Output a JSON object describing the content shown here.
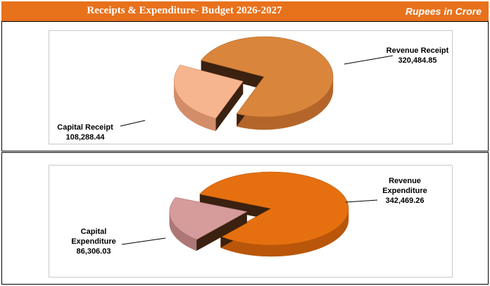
{
  "header": {
    "title": "Receipts & Expenditure- Budget 2026-2027",
    "unit": "Rupees in Crore"
  },
  "chart_data": [
    {
      "type": "pie",
      "title": "",
      "slices": [
        {
          "label": [
            "Revenue Receipt"
          ],
          "value": 320484.85,
          "value_text": "320,484.85",
          "color": "#d9853b",
          "side": "#b4662a",
          "exploded": false
        },
        {
          "label": [
            "Capital Receipt"
          ],
          "value": 108288.44,
          "value_text": "108,288.44",
          "color": "#f6b58e",
          "side": "#d48d69",
          "exploded": true
        }
      ]
    },
    {
      "type": "pie",
      "title": "",
      "slices": [
        {
          "label": [
            "Revenue",
            "Expenditure"
          ],
          "value": 342469.26,
          "value_text": "342,469.26",
          "color": "#e6700f",
          "side": "#b9560a",
          "exploded": false
        },
        {
          "label": [
            "Capital",
            "Expenditure"
          ],
          "value": 86306.03,
          "value_text": "86,306.03",
          "color": "#d69c9c",
          "side": "#ad7777",
          "exploded": true
        }
      ]
    }
  ]
}
